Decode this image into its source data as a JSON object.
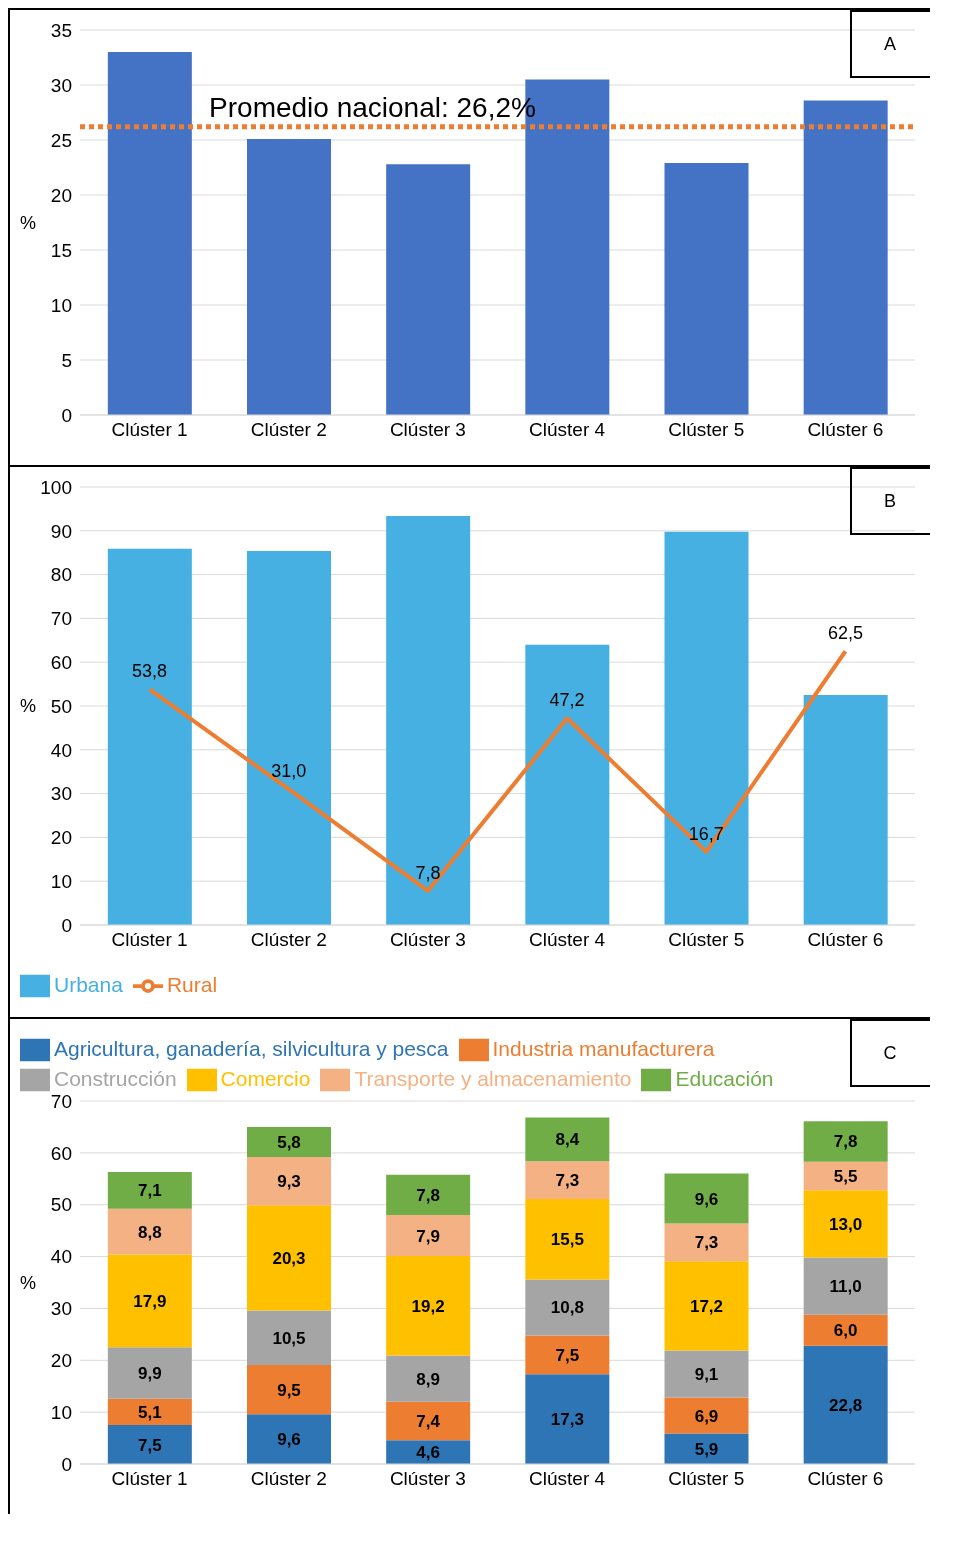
{
  "chart_data": [
    {
      "type": "bar",
      "title": "A",
      "ylabel": "%",
      "categories": [
        "Clúster 1",
        "Clúster 2",
        "Clúster 3",
        "Clúster 4",
        "Clúster 5",
        "Clúster 6"
      ],
      "series": [
        {
          "color": "#4472c4",
          "values": [
            33.0,
            25.1,
            22.8,
            30.5,
            22.9,
            28.6
          ]
        }
      ],
      "ylim": [
        0,
        35
      ],
      "yticks": [
        0,
        5,
        10,
        15,
        20,
        25,
        30,
        35
      ],
      "grid": "y",
      "ref_lines": [
        {
          "axis": "y",
          "value": 26.2,
          "label": "Promedio nacional: 26,2%",
          "color": "#ed7d31",
          "line_style": "dotted"
        }
      ]
    },
    {
      "type": "bar",
      "title": "B",
      "ylabel": "%",
      "categories": [
        "Clúster 1",
        "Clúster 2",
        "Clúster 3",
        "Clúster 4",
        "Clúster 5",
        "Clúster 6"
      ],
      "series": [
        {
          "name": "Urbana",
          "color": "#45b0e1",
          "values": [
            85.9,
            85.4,
            93.4,
            64.0,
            89.8,
            52.5
          ]
        },
        {
          "name": "Rural",
          "type": "line",
          "color": "#ed7d31",
          "values": [
            53.8,
            31.0,
            7.8,
            47.2,
            16.7,
            62.5
          ],
          "value_labels": [
            "53,8",
            "31,0",
            "7,8",
            "47,2",
            "16,7",
            "62,5"
          ]
        }
      ],
      "ylim": [
        0,
        100
      ],
      "yticks": [
        0,
        10,
        20,
        30,
        40,
        50,
        60,
        70,
        80,
        90,
        100
      ],
      "grid": "y",
      "legend": "bottom",
      "marker": "none"
    },
    {
      "type": "bar",
      "title": "C",
      "ylabel": "%",
      "stacked": true,
      "categories": [
        "Clúster 1",
        "Clúster 2",
        "Clúster 3",
        "Clúster 4",
        "Clúster 5",
        "Clúster 6"
      ],
      "series": [
        {
          "name": "Agricultura, ganadería, silvicultura y pesca",
          "color": "#2e75b6",
          "values": [
            7.5,
            9.6,
            4.6,
            17.3,
            5.9,
            22.8
          ],
          "value_labels": [
            "7,5",
            "9,6",
            "4,6",
            "17,3",
            "5,9",
            "22,8"
          ]
        },
        {
          "name": "Industria manufacturera",
          "color": "#ed7d31",
          "values": [
            5.1,
            9.5,
            7.4,
            7.5,
            6.9,
            6.0
          ],
          "value_labels": [
            "5,1",
            "9,5",
            "7,4",
            "7,5",
            "6,9",
            "6,0"
          ]
        },
        {
          "name": "Construcción",
          "color": "#a5a5a5",
          "values": [
            9.9,
            10.5,
            8.9,
            10.8,
            9.1,
            11.0
          ],
          "value_labels": [
            "9,9",
            "10,5",
            "8,9",
            "10,8",
            "9,1",
            "11,0"
          ]
        },
        {
          "name": "Comercio",
          "color": "#ffc000",
          "values": [
            17.9,
            20.3,
            19.2,
            15.5,
            17.2,
            13.0
          ],
          "value_labels": [
            "17,9",
            "20,3",
            "19,2",
            "15,5",
            "17,2",
            "13,0"
          ]
        },
        {
          "name": "Transporte y almacenamiento",
          "color": "#f4b183",
          "values": [
            8.8,
            9.3,
            7.9,
            7.3,
            7.3,
            5.5
          ],
          "value_labels": [
            "8,8",
            "9,3",
            "7,9",
            "7,3",
            "7,3",
            "5,5"
          ]
        },
        {
          "name": "Educación",
          "color": "#70ad47",
          "values": [
            7.1,
            5.8,
            7.8,
            8.4,
            9.6,
            7.8
          ],
          "value_labels": [
            "7,1",
            "5,8",
            "7,8",
            "8,4",
            "9,6",
            "7,8"
          ]
        }
      ],
      "ylim": [
        0,
        70
      ],
      "yticks": [
        0,
        10,
        20,
        30,
        40,
        50,
        60,
        70
      ],
      "grid": "y",
      "legend": "top"
    }
  ]
}
